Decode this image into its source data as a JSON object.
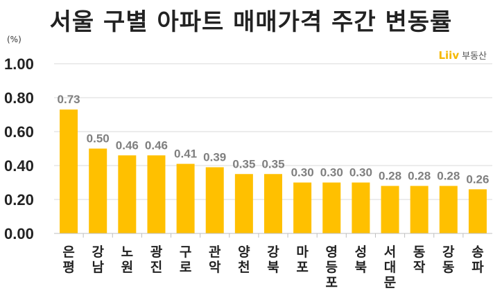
{
  "title": "서울 구별 아파트 매매가격 주간 변동률",
  "unit": "(%)",
  "logo": {
    "mark": "Liiv",
    "text": "부동산"
  },
  "colors": {
    "bar": "#FFC000",
    "grid": "#d9d9d9",
    "axis": "#bfbfbf"
  },
  "chart_data": {
    "type": "bar",
    "title": "서울 구별 아파트 매매가격 주간 변동률",
    "categories": [
      "은평",
      "강남",
      "노원",
      "광진",
      "구로",
      "관악",
      "양천",
      "강북",
      "마포",
      "영등포",
      "성북",
      "서대문",
      "동작",
      "강동",
      "송파"
    ],
    "values": [
      0.73,
      0.5,
      0.46,
      0.46,
      0.41,
      0.39,
      0.35,
      0.35,
      0.3,
      0.3,
      0.3,
      0.28,
      0.28,
      0.28,
      0.26
    ],
    "ylim": [
      0,
      1.0
    ],
    "yticks": [
      "0.00",
      "0.20",
      "0.40",
      "0.60",
      "0.80",
      "1.00"
    ],
    "grid": true,
    "xlabel": "",
    "ylabel": "(%)"
  }
}
